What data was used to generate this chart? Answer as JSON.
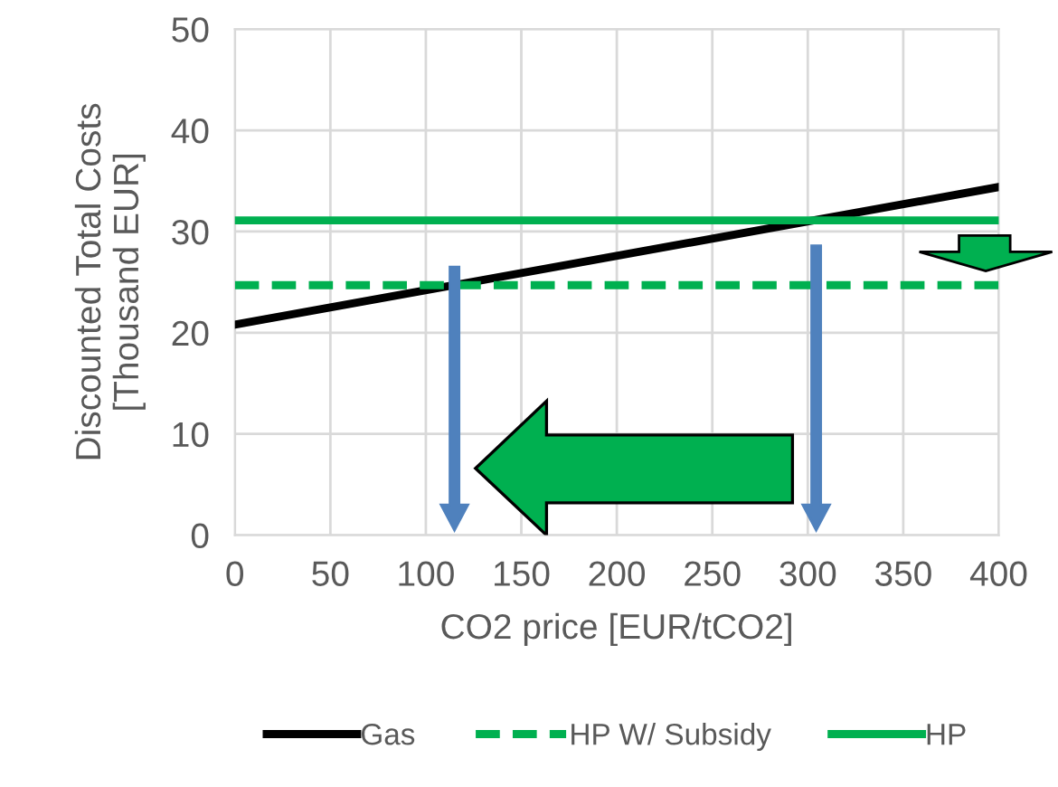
{
  "chart_data": {
    "type": "line",
    "xlabel": "CO2 price [EUR/tCO2]",
    "ylabel": "Discounted Total Costs\n[Thousand EUR]",
    "x": [
      0,
      400
    ],
    "series": [
      {
        "name": "Gas",
        "color": "#000000",
        "values": [
          20.8,
          34.4
        ],
        "line_style": "solid"
      },
      {
        "name": "HP W/ Subsidy",
        "color": "#00b050",
        "values": [
          24.7,
          24.7
        ],
        "line_style": "dashed"
      },
      {
        "name": "HP",
        "color": "#00b050",
        "values": [
          31.1,
          31.1
        ],
        "line_style": "solid"
      }
    ],
    "xlim": [
      0,
      400
    ],
    "xticks": [
      0,
      50,
      100,
      150,
      200,
      250,
      300,
      350,
      400
    ],
    "ylim": [
      0,
      50
    ],
    "yticks": [
      0,
      10,
      20,
      30,
      40,
      50
    ],
    "grid": true,
    "legend": "bottom",
    "marker": "none"
  }
}
